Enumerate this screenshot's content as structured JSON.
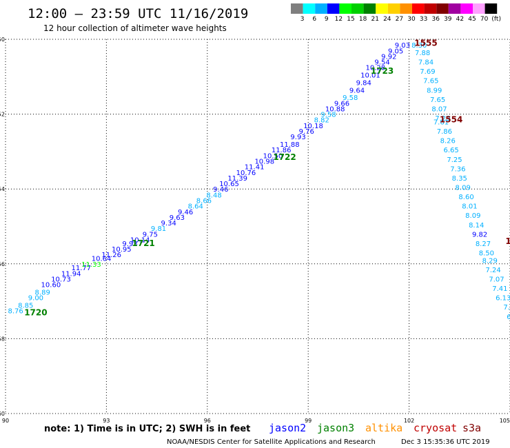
{
  "header": {
    "title": "12:00 — 23:59 UTC 11/16/2019",
    "subtitle": "12 hour collection of altimeter wave heights"
  },
  "colorbar": {
    "colors": [
      "#7f7f7f",
      "#00ffff",
      "#00b0ff",
      "#0000ff",
      "#00ff00",
      "#00d000",
      "#008000",
      "#ffff00",
      "#ffd000",
      "#ff9000",
      "#ff0000",
      "#c00000",
      "#800000",
      "#a000a0",
      "#ff00ff",
      "#ffa0ff",
      "#000000"
    ],
    "labels": [
      "3",
      "6",
      "9",
      "12",
      "15",
      "18",
      "21",
      "24",
      "27",
      "30",
      "33",
      "36",
      "39",
      "42",
      "45",
      "70",
      "(ft)"
    ]
  },
  "footer": {
    "note": "note: 1) Time is in UTC; 2) SWH is in feet",
    "credit": "NOAA/NESDIS Center for Satellite Applications and Research",
    "timestamp": "Dec  3 15:35:36 UTC 2019"
  },
  "satellites": [
    {
      "name": "jason2",
      "color": "#0000ff"
    },
    {
      "name": "jason3",
      "color": "#008000"
    },
    {
      "name": "altika",
      "color": "#ff9000"
    },
    {
      "name": "cryosat",
      "color": "#c00000"
    },
    {
      "name": "s3a",
      "color": "#800000"
    }
  ],
  "chart_data": {
    "type": "scatter",
    "title": "12:00 — 23:59 UTC 11/16/2019",
    "subtitle": "12 hour collection of altimeter wave heights",
    "xlim": [
      90,
      105
    ],
    "ylim": [
      -60,
      -50
    ],
    "xticks": [
      90,
      93,
      96,
      99,
      102,
      105
    ],
    "yticks": [
      -50,
      -52,
      -54,
      -56,
      -58,
      -60
    ],
    "grid": true,
    "points": [
      {
        "x": 90.3,
        "y": -57.25,
        "label": "8.76",
        "color": "#00b0ff"
      },
      {
        "x": 90.6,
        "y": -57.1,
        "label": "8.85",
        "color": "#00b0ff"
      },
      {
        "x": 90.9,
        "y": -56.9,
        "label": "9.00",
        "color": "#00b0ff"
      },
      {
        "x": 91.1,
        "y": -56.75,
        "label": "8.89",
        "color": "#00b0ff"
      },
      {
        "x": 91.35,
        "y": -56.55,
        "label": "10.60",
        "color": "#0000ff"
      },
      {
        "x": 91.65,
        "y": -56.4,
        "label": "10.73",
        "color": "#0000ff"
      },
      {
        "x": 91.95,
        "y": -56.25,
        "label": "11.94",
        "color": "#0000ff"
      },
      {
        "x": 92.25,
        "y": -56.1,
        "label": "11.77",
        "color": "#0000ff"
      },
      {
        "x": 92.55,
        "y": -56.0,
        "label": "11.33",
        "color": "#00ff00"
      },
      {
        "x": 92.85,
        "y": -55.85,
        "label": "10.64",
        "color": "#0000ff"
      },
      {
        "x": 93.15,
        "y": -55.75,
        "label": "11.26",
        "color": "#0000ff"
      },
      {
        "x": 93.45,
        "y": -55.6,
        "label": "10.95",
        "color": "#0000ff"
      },
      {
        "x": 93.7,
        "y": -55.45,
        "label": "9.93",
        "color": "#0000ff"
      },
      {
        "x": 94.0,
        "y": -55.35,
        "label": "10.14",
        "color": "#0000ff"
      },
      {
        "x": 94.3,
        "y": -55.2,
        "label": "9.75",
        "color": "#0000ff"
      },
      {
        "x": 94.55,
        "y": -55.05,
        "label": "9.81",
        "color": "#00b0ff"
      },
      {
        "x": 94.85,
        "y": -54.9,
        "label": "9.34",
        "color": "#0000ff"
      },
      {
        "x": 95.1,
        "y": -54.75,
        "label": "9.63",
        "color": "#0000ff"
      },
      {
        "x": 95.35,
        "y": -54.6,
        "label": "9.46",
        "color": "#0000ff"
      },
      {
        "x": 95.65,
        "y": -54.45,
        "label": "8.64",
        "color": "#00b0ff"
      },
      {
        "x": 95.9,
        "y": -54.3,
        "label": "8.66",
        "color": "#00b0ff"
      },
      {
        "x": 96.2,
        "y": -54.15,
        "label": "8.48",
        "color": "#00b0ff"
      },
      {
        "x": 96.4,
        "y": -54.0,
        "label": "9.46",
        "color": "#0000ff"
      },
      {
        "x": 96.65,
        "y": -53.85,
        "label": "10.65",
        "color": "#0000ff"
      },
      {
        "x": 96.9,
        "y": -53.7,
        "label": "11.39",
        "color": "#0000ff"
      },
      {
        "x": 97.15,
        "y": -53.55,
        "label": "10.76",
        "color": "#0000ff"
      },
      {
        "x": 97.4,
        "y": -53.4,
        "label": "11.41",
        "color": "#0000ff"
      },
      {
        "x": 97.7,
        "y": -53.25,
        "label": "10.98",
        "color": "#0000ff"
      },
      {
        "x": 97.95,
        "y": -53.1,
        "label": "10.50",
        "color": "#0000ff"
      },
      {
        "x": 98.2,
        "y": -52.95,
        "label": "11.86",
        "color": "#0000ff"
      },
      {
        "x": 98.45,
        "y": -52.8,
        "label": "11.88",
        "color": "#0000ff"
      },
      {
        "x": 98.7,
        "y": -52.6,
        "label": "9.93",
        "color": "#0000ff"
      },
      {
        "x": 98.95,
        "y": -52.45,
        "label": "9.76",
        "color": "#0000ff"
      },
      {
        "x": 99.15,
        "y": -52.3,
        "label": "10.18",
        "color": "#0000ff"
      },
      {
        "x": 99.4,
        "y": -52.15,
        "label": "8.82",
        "color": "#00b0ff"
      },
      {
        "x": 99.6,
        "y": -52.0,
        "label": "9.58",
        "color": "#00b0ff"
      },
      {
        "x": 99.8,
        "y": -51.85,
        "label": "10.88",
        "color": "#0000ff"
      },
      {
        "x": 100.0,
        "y": -51.7,
        "label": "9.66",
        "color": "#0000ff"
      },
      {
        "x": 100.25,
        "y": -51.55,
        "label": "9.58",
        "color": "#00b0ff"
      },
      {
        "x": 100.45,
        "y": -51.35,
        "label": "9.64",
        "color": "#0000ff"
      },
      {
        "x": 100.65,
        "y": -51.15,
        "label": "9.84",
        "color": "#0000ff"
      },
      {
        "x": 100.85,
        "y": -50.95,
        "label": "10.01",
        "color": "#0000ff"
      },
      {
        "x": 101.0,
        "y": -50.75,
        "label": "10.28",
        "color": "#0000ff"
      },
      {
        "x": 101.2,
        "y": -50.6,
        "label": "9.54",
        "color": "#0000ff"
      },
      {
        "x": 101.4,
        "y": -50.45,
        "label": "9.92",
        "color": "#0000ff"
      },
      {
        "x": 101.6,
        "y": -50.3,
        "label": "9.05",
        "color": "#0000ff"
      },
      {
        "x": 101.8,
        "y": -50.15,
        "label": "9.03",
        "color": "#0000ff"
      },
      {
        "x": 102.3,
        "y": -50.15,
        "label": "8.30",
        "color": "#00b0ff"
      },
      {
        "x": 102.4,
        "y": -50.35,
        "label": "7.88",
        "color": "#00b0ff"
      },
      {
        "x": 102.5,
        "y": -50.6,
        "label": "7.84",
        "color": "#00b0ff"
      },
      {
        "x": 102.55,
        "y": -50.85,
        "label": "7.69",
        "color": "#00b0ff"
      },
      {
        "x": 102.65,
        "y": -51.1,
        "label": "7.65",
        "color": "#00b0ff"
      },
      {
        "x": 102.75,
        "y": -51.35,
        "label": "8.99",
        "color": "#00b0ff"
      },
      {
        "x": 102.85,
        "y": -51.6,
        "label": "7.65",
        "color": "#00b0ff"
      },
      {
        "x": 102.9,
        "y": -51.85,
        "label": "8.07",
        "color": "#00b0ff"
      },
      {
        "x": 103.0,
        "y": -52.1,
        "label": "7.29",
        "color": "#00b0ff"
      },
      {
        "x": 102.95,
        "y": -52.2,
        "label": "7.61",
        "color": "#00b0ff"
      },
      {
        "x": 103.05,
        "y": -52.45,
        "label": "7.86",
        "color": "#00b0ff"
      },
      {
        "x": 103.15,
        "y": -52.7,
        "label": "8.26",
        "color": "#00b0ff"
      },
      {
        "x": 103.25,
        "y": -52.95,
        "label": "6.65",
        "color": "#00b0ff"
      },
      {
        "x": 103.35,
        "y": -53.2,
        "label": "7.25",
        "color": "#00b0ff"
      },
      {
        "x": 103.45,
        "y": -53.45,
        "label": "7.36",
        "color": "#00b0ff"
      },
      {
        "x": 103.5,
        "y": -53.7,
        "label": "8.35",
        "color": "#00b0ff"
      },
      {
        "x": 103.6,
        "y": -53.95,
        "label": "8.09",
        "color": "#00b0ff"
      },
      {
        "x": 103.7,
        "y": -54.2,
        "label": "8.60",
        "color": "#00b0ff"
      },
      {
        "x": 103.8,
        "y": -54.45,
        "label": "8.01",
        "color": "#00b0ff"
      },
      {
        "x": 103.9,
        "y": -54.7,
        "label": "8.09",
        "color": "#00b0ff"
      },
      {
        "x": 104.0,
        "y": -54.95,
        "label": "8.14",
        "color": "#00b0ff"
      },
      {
        "x": 104.1,
        "y": -55.2,
        "label": "9.82",
        "color": "#0000ff"
      },
      {
        "x": 104.2,
        "y": -55.45,
        "label": "8.27",
        "color": "#00b0ff"
      },
      {
        "x": 104.3,
        "y": -55.7,
        "label": "8.50",
        "color": "#00b0ff"
      },
      {
        "x": 104.4,
        "y": -55.9,
        "label": "8.29",
        "color": "#00b0ff"
      },
      {
        "x": 104.5,
        "y": -56.15,
        "label": "7.24",
        "color": "#00b0ff"
      },
      {
        "x": 104.6,
        "y": -56.4,
        "label": "7.07",
        "color": "#00b0ff"
      },
      {
        "x": 104.7,
        "y": -56.65,
        "label": "7.41",
        "color": "#00b0ff"
      },
      {
        "x": 104.8,
        "y": -56.9,
        "label": "6.13",
        "color": "#00b0ff"
      },
      {
        "x": 104.9,
        "y": -57.15,
        "label": "7.",
        "color": "#00b0ff"
      },
      {
        "x": 105.0,
        "y": -57.4,
        "label": "6.",
        "color": "#00b0ff"
      }
    ],
    "pass_labels": [
      {
        "x": 90.9,
        "y": -57.3,
        "label": "1720",
        "color": "#008000"
      },
      {
        "x": 94.1,
        "y": -55.45,
        "label": "1721",
        "color": "#008000"
      },
      {
        "x": 98.3,
        "y": -53.15,
        "label": "1722",
        "color": "#008000"
      },
      {
        "x": 101.2,
        "y": -50.85,
        "label": "1723",
        "color": "#008000"
      },
      {
        "x": 102.5,
        "y": -50.1,
        "label": "1555",
        "color": "#800000"
      },
      {
        "x": 103.25,
        "y": -52.15,
        "label": "1554",
        "color": "#800000"
      },
      {
        "x": 104.95,
        "y": -55.4,
        "label": "1",
        "color": "#800000"
      }
    ]
  }
}
